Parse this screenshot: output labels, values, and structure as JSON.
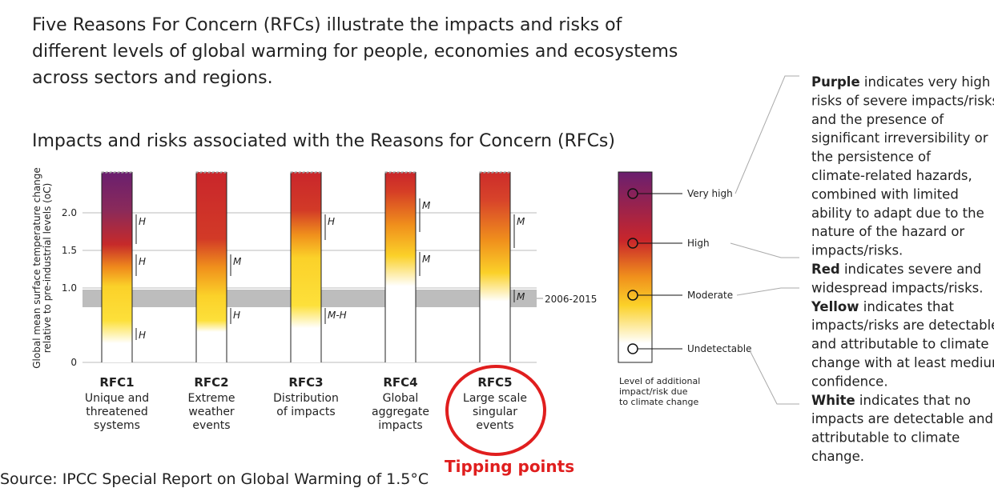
{
  "intro": [
    "Five Reasons For Concern (RFCs) illustrate the impacts and risks of",
    "different levels of global warming for people, economies and ecosystems",
    "across sectors and regions."
  ],
  "heading": "Impacts and risks associated with the Reasons for Concern (RFCs)",
  "axis_label": [
    "Global mean surface temperature change",
    "relative to pre-industrial levels (oC)"
  ],
  "yticks": [
    "2.0",
    "1.5",
    "1.0",
    "0"
  ],
  "band_label": "2006-2015",
  "rfcs": [
    {
      "id": "RFC1",
      "name": [
        "Unique and",
        "threatened",
        "systems"
      ],
      "confidence": [
        "H",
        "H",
        "H"
      ]
    },
    {
      "id": "RFC2",
      "name": [
        "Extreme",
        "weather",
        "events"
      ],
      "confidence": [
        "M",
        "H"
      ]
    },
    {
      "id": "RFC3",
      "name": [
        "Distribution",
        "of impacts"
      ],
      "confidence": [
        "H",
        "M-H"
      ]
    },
    {
      "id": "RFC4",
      "name": [
        "Global",
        "aggregate",
        "impacts"
      ],
      "confidence": [
        "M",
        "M"
      ]
    },
    {
      "id": "RFC5",
      "name": [
        "Large scale",
        "singular",
        "events"
      ],
      "confidence": [
        "M",
        "M"
      ]
    }
  ],
  "legend": {
    "levels": [
      "Very high",
      "High",
      "Moderate",
      "Undetectable"
    ],
    "caption": [
      "Level of additional",
      "impact/risk due",
      "to climate change"
    ]
  },
  "explanations": [
    {
      "bold": "Purple",
      "lines": [
        " indicates very high",
        "risks of severe impacts/risks",
        "and the presence of",
        "significant irreversibility or",
        "the persistence of",
        "climate-related hazards,",
        "combined with limited",
        "ability to adapt due to the",
        "nature of the hazard or",
        "impacts/risks."
      ]
    },
    {
      "bold": "Red",
      "lines": [
        " indicates severe and",
        "widespread impacts/risks."
      ]
    },
    {
      "bold": "Yellow",
      "lines": [
        " indicates that",
        "impacts/risks are detectable",
        "and attributable to climate",
        "change with at least medium",
        "confidence."
      ]
    },
    {
      "bold": "White",
      "lines": [
        " indicates that no",
        "impacts are detectable and",
        "attributable to climate",
        "change."
      ]
    }
  ],
  "annotation": "Tipping points",
  "source": "Source: IPCC Special Report on Global Warming of 1.5°C"
}
